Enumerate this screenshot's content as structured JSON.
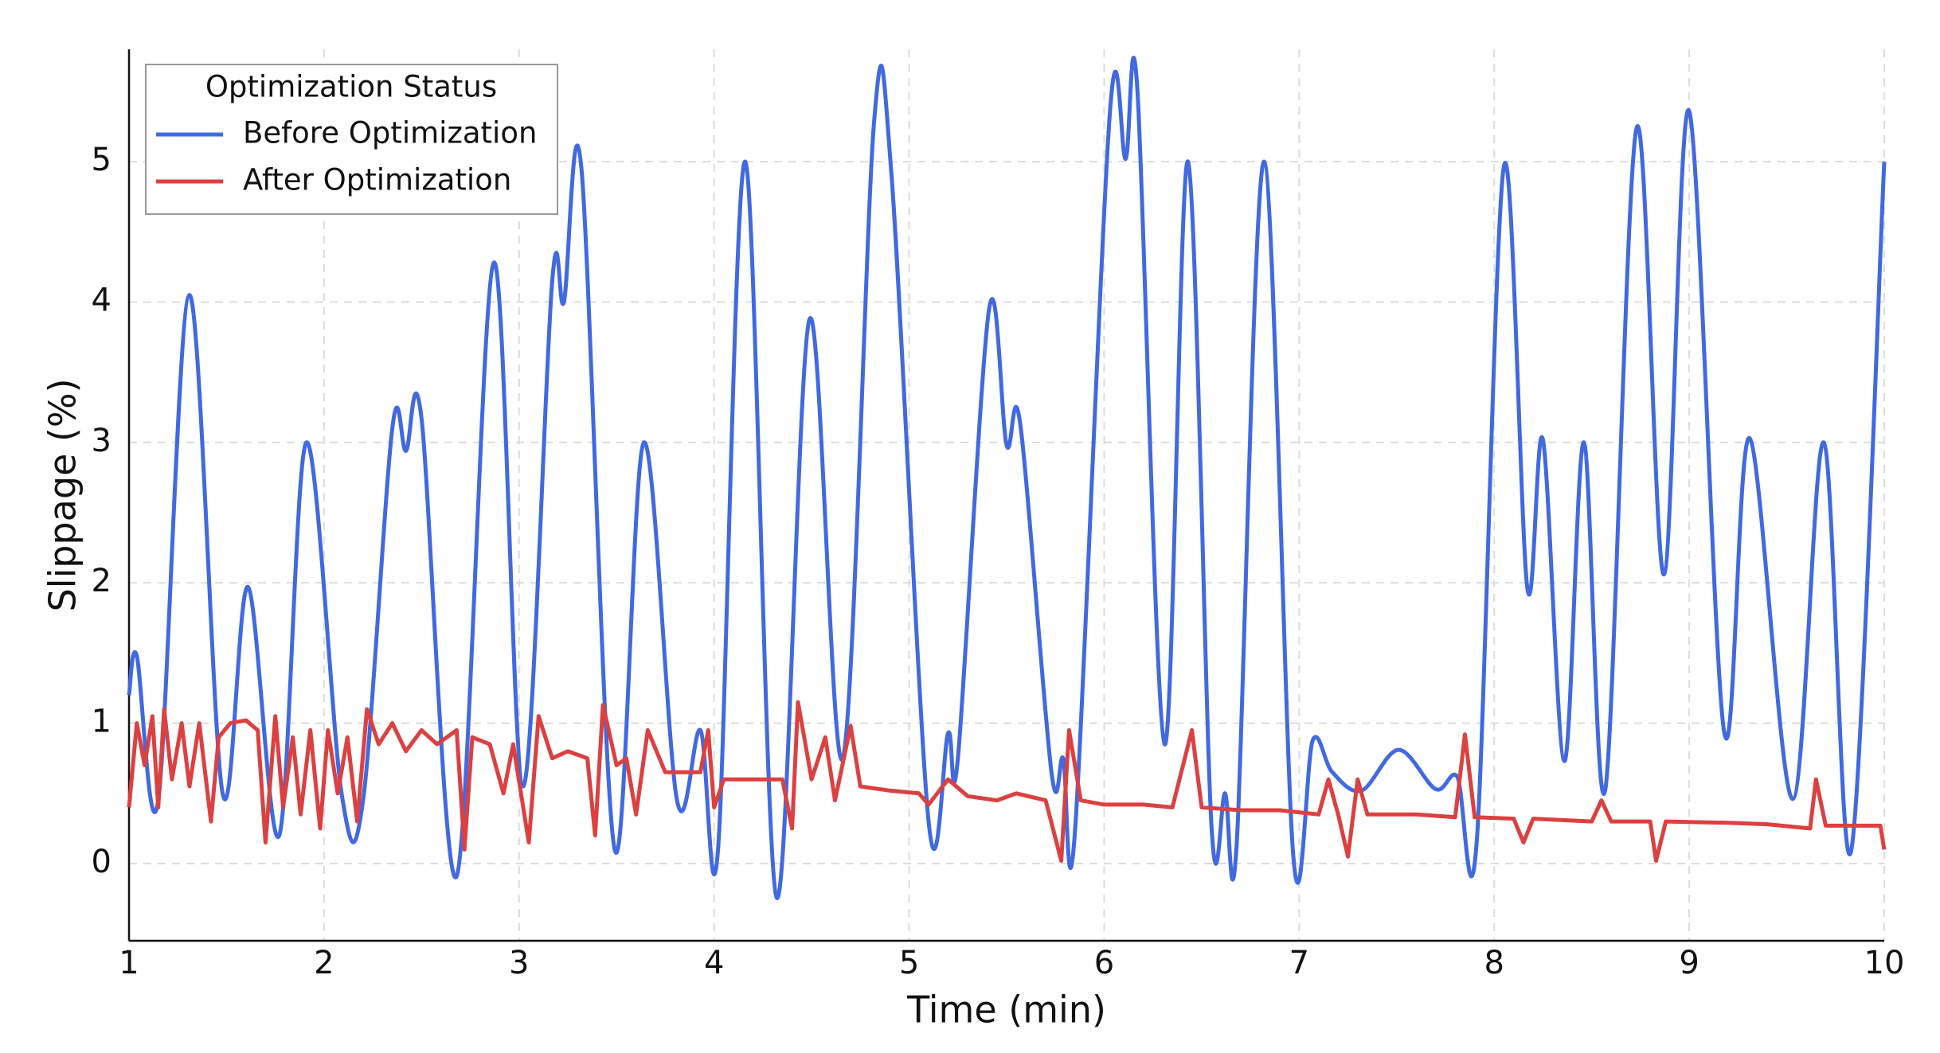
{
  "chart_data": {
    "type": "line",
    "x_label": "Time (min)",
    "y_label": "Slippage (%)",
    "legend_title": "Optimization Status",
    "legend": "upper left",
    "grid": true,
    "xlim": [
      1,
      10
    ],
    "xticks": [
      1,
      2,
      3,
      4,
      5,
      6,
      7,
      8,
      9,
      10
    ],
    "ylim": [
      -0.55,
      5.8
    ],
    "yticks": [
      0,
      1,
      2,
      3,
      4,
      5
    ],
    "series": [
      {
        "name": "Before Optimization",
        "color": "#4169e1",
        "smooth": true,
        "x": [
          1.0,
          1.04,
          1.15,
          1.31,
          1.48,
          1.61,
          1.77,
          1.91,
          2.09,
          2.2,
          2.35,
          2.42,
          2.5,
          2.68,
          2.87,
          3.02,
          3.17,
          3.23,
          3.32,
          3.49,
          3.64,
          3.81,
          3.93,
          4.02,
          4.16,
          4.32,
          4.49,
          4.66,
          4.82,
          4.91,
          5.1,
          5.2,
          5.25,
          5.41,
          5.5,
          5.57,
          5.73,
          5.79,
          5.85,
          6.03,
          6.11,
          6.17,
          6.31,
          6.43,
          6.55,
          6.62,
          6.68,
          6.82,
          6.97,
          7.07,
          7.17,
          7.32,
          7.51,
          7.7,
          7.81,
          7.91,
          8.05,
          8.17,
          8.25,
          8.36,
          8.46,
          8.57,
          8.73,
          8.87,
          9.0,
          9.18,
          9.31,
          9.53,
          9.69,
          9.83,
          10.0
        ],
        "values": [
          1.2,
          1.48,
          0.45,
          4.05,
          0.5,
          1.97,
          0.2,
          3.0,
          0.5,
          0.45,
          3.1,
          2.94,
          3.17,
          -0.09,
          4.28,
          0.55,
          4.15,
          4.0,
          4.95,
          0.1,
          3.0,
          0.45,
          0.95,
          0.1,
          5.0,
          -0.24,
          3.88,
          0.75,
          5.28,
          4.9,
          0.3,
          0.93,
          0.75,
          3.95,
          2.98,
          3.13,
          0.65,
          0.75,
          0.22,
          5.36,
          5.02,
          5.52,
          0.85,
          5.0,
          0.28,
          0.5,
          0.15,
          5.0,
          0.05,
          0.88,
          0.65,
          0.52,
          0.81,
          0.53,
          0.62,
          0.15,
          4.97,
          1.96,
          3.02,
          0.73,
          3.0,
          0.53,
          5.24,
          2.06,
          5.36,
          0.93,
          3.03,
          0.46,
          3.0,
          0.09,
          5.0
        ]
      },
      {
        "name": "After Optimization",
        "color": "#dc4040",
        "smooth": false,
        "x": [
          1.0,
          1.04,
          1.08,
          1.12,
          1.15,
          1.18,
          1.22,
          1.27,
          1.31,
          1.36,
          1.42,
          1.46,
          1.52,
          1.6,
          1.66,
          1.7,
          1.75,
          1.79,
          1.84,
          1.88,
          1.93,
          1.98,
          2.02,
          2.07,
          2.12,
          2.17,
          2.22,
          2.28,
          2.35,
          2.42,
          2.5,
          2.58,
          2.68,
          2.72,
          2.76,
          2.85,
          2.92,
          2.97,
          3.05,
          3.1,
          3.17,
          3.25,
          3.35,
          3.39,
          3.43,
          3.5,
          3.55,
          3.6,
          3.66,
          3.75,
          3.85,
          3.93,
          3.97,
          4.0,
          4.05,
          4.2,
          4.35,
          4.4,
          4.43,
          4.5,
          4.57,
          4.62,
          4.7,
          4.75,
          4.9,
          5.05,
          5.1,
          5.2,
          5.3,
          5.45,
          5.55,
          5.7,
          5.78,
          5.82,
          5.88,
          6.0,
          6.1,
          6.2,
          6.35,
          6.45,
          6.5,
          6.7,
          6.9,
          7.1,
          7.15,
          7.2,
          7.25,
          7.3,
          7.35,
          7.6,
          7.8,
          7.85,
          7.9,
          8.1,
          8.15,
          8.2,
          8.5,
          8.55,
          8.6,
          8.8,
          8.83,
          8.88,
          9.2,
          9.4,
          9.62,
          9.65,
          9.7,
          9.98,
          10.0
        ],
        "values": [
          0.4,
          1.0,
          0.7,
          1.05,
          0.4,
          1.1,
          0.6,
          1.0,
          0.55,
          1.0,
          0.3,
          0.9,
          1.0,
          1.02,
          0.95,
          0.15,
          1.05,
          0.4,
          0.9,
          0.35,
          0.95,
          0.25,
          0.95,
          0.5,
          0.9,
          0.3,
          1.1,
          0.85,
          1.0,
          0.8,
          0.95,
          0.85,
          0.95,
          0.1,
          0.9,
          0.85,
          0.5,
          0.85,
          0.15,
          1.05,
          0.75,
          0.8,
          0.75,
          0.2,
          1.13,
          0.7,
          0.75,
          0.35,
          0.95,
          0.65,
          0.65,
          0.65,
          0.95,
          0.4,
          0.6,
          0.6,
          0.6,
          0.25,
          1.15,
          0.6,
          0.9,
          0.45,
          0.98,
          0.55,
          0.52,
          0.5,
          0.42,
          0.6,
          0.48,
          0.45,
          0.5,
          0.45,
          0.02,
          0.95,
          0.45,
          0.42,
          0.42,
          0.42,
          0.4,
          0.95,
          0.4,
          0.38,
          0.38,
          0.35,
          0.6,
          0.35,
          0.05,
          0.6,
          0.35,
          0.35,
          0.33,
          0.92,
          0.33,
          0.32,
          0.15,
          0.32,
          0.3,
          0.45,
          0.3,
          0.3,
          0.02,
          0.3,
          0.29,
          0.28,
          0.25,
          0.6,
          0.27,
          0.27,
          0.1
        ]
      }
    ]
  }
}
